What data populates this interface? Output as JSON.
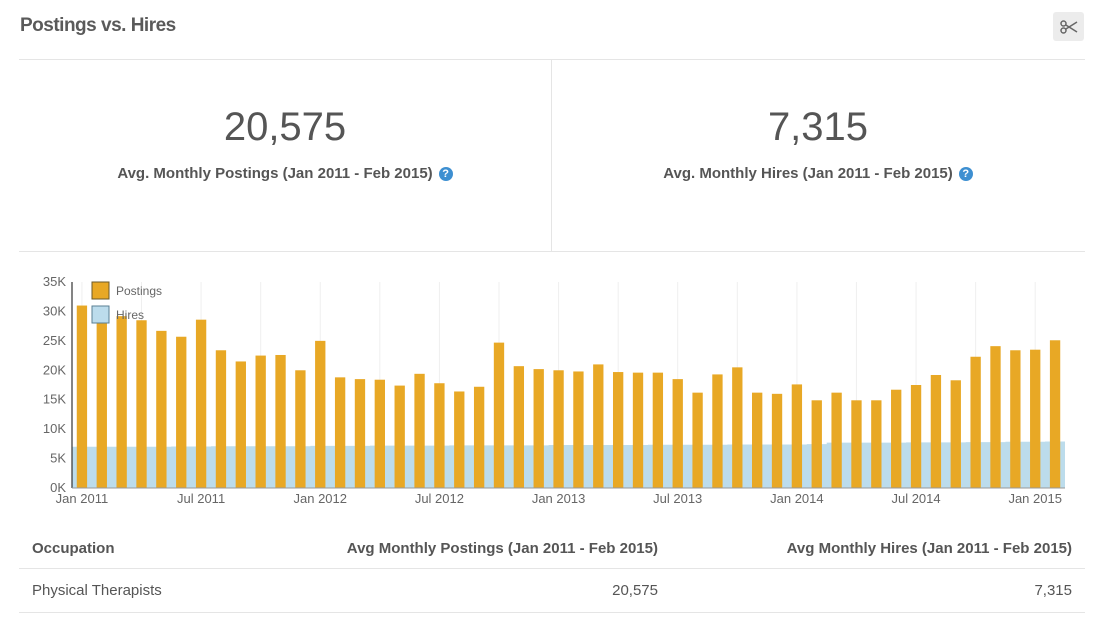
{
  "header": {
    "title": "Postings vs. Hires",
    "scissors_icon": "scissors-icon"
  },
  "stats": [
    {
      "value": "20,575",
      "label": "Avg. Monthly Postings (Jan 2011 - Feb 2015)"
    },
    {
      "value": "7,315",
      "label": "Avg. Monthly Hires (Jan 2011 - Feb 2015)"
    }
  ],
  "colors": {
    "postings": "#e8a825",
    "hires": "#bcdcec",
    "help": "#3d8fd1"
  },
  "chart_data": {
    "type": "bar",
    "series": [
      {
        "name": "Postings",
        "values": [
          31000,
          30000,
          29200,
          28500,
          26700,
          25700,
          28600,
          23400,
          21500,
          22500,
          22600,
          20000,
          25000,
          18800,
          18500,
          18400,
          17400,
          19400,
          17800,
          16400,
          17200,
          24700,
          20700,
          20200,
          20000,
          19800,
          21000,
          19700,
          19600,
          19600,
          18500,
          16200,
          19300,
          20500,
          16200,
          16000,
          17600,
          14900,
          16200,
          14900,
          14900,
          16700,
          17500,
          19200,
          18300,
          22300,
          24100,
          23400,
          23500,
          25100
        ]
      },
      {
        "name": "Hires",
        "values": [
          7000,
          7000,
          7000,
          7000,
          7000,
          7050,
          7050,
          7100,
          7100,
          7100,
          7100,
          7100,
          7150,
          7150,
          7150,
          7200,
          7200,
          7200,
          7200,
          7250,
          7250,
          7250,
          7250,
          7250,
          7300,
          7300,
          7300,
          7300,
          7300,
          7350,
          7350,
          7350,
          7350,
          7400,
          7400,
          7400,
          7400,
          7450,
          7700,
          7700,
          7700,
          7700,
          7750,
          7750,
          7750,
          7800,
          7800,
          7850,
          7850,
          7900
        ]
      }
    ],
    "yticks": [
      "0K",
      "5K",
      "10K",
      "15K",
      "20K",
      "25K",
      "30K",
      "35K"
    ],
    "ylim": [
      0,
      35000
    ],
    "xticks": [
      {
        "label": "Jan 2011",
        "index": 0
      },
      {
        "label": "Jul 2011",
        "index": 6
      },
      {
        "label": "Jan 2012",
        "index": 12
      },
      {
        "label": "Jul 2012",
        "index": 18
      },
      {
        "label": "Jan 2013",
        "index": 24
      },
      {
        "label": "Jul 2013",
        "index": 30
      },
      {
        "label": "Jan 2014",
        "index": 36
      },
      {
        "label": "Jul 2014",
        "index": 42
      },
      {
        "label": "Jan 2015",
        "index": 48
      }
    ],
    "legend": [
      "Postings",
      "Hires"
    ],
    "legend_position": "top-left"
  },
  "table": {
    "headers": [
      "Occupation",
      "Avg Monthly Postings (Jan 2011 - Feb 2015)",
      "Avg Monthly Hires (Jan 2011 - Feb 2015)"
    ],
    "rows": [
      [
        "Physical Therapists",
        "20,575",
        "7,315"
      ]
    ]
  }
}
